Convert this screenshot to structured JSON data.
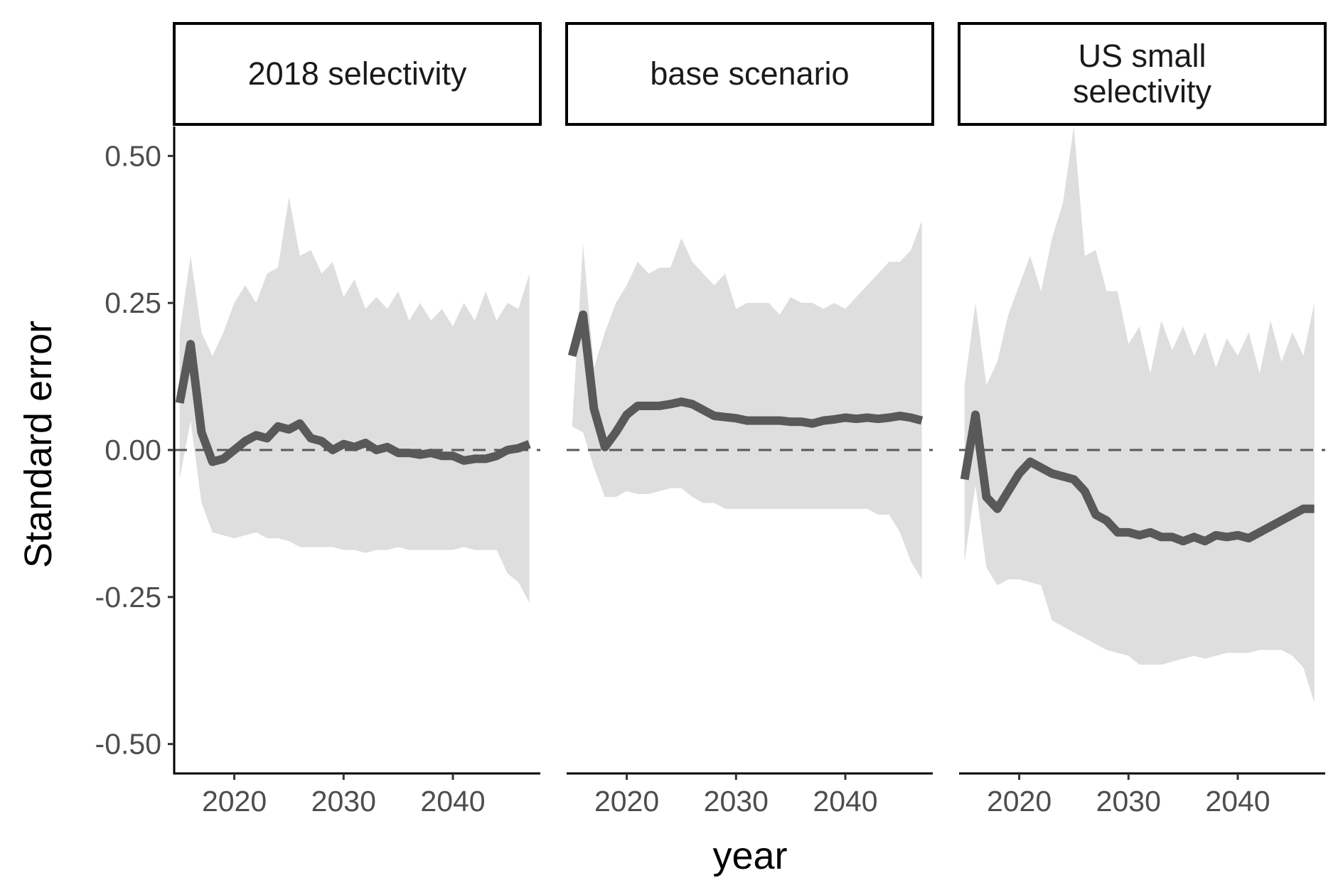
{
  "chart_data": {
    "type": "area",
    "title": "",
    "xlabel": "year",
    "ylabel": "Standard error",
    "ylim": [
      -0.55,
      0.55
    ],
    "xlim": [
      2014.5,
      2048
    ],
    "yticks": [
      0.5,
      0.25,
      0.0,
      -0.25,
      -0.5
    ],
    "ytick_labels": [
      "0.50",
      "0.25",
      "0.00",
      "-0.25",
      "-0.50"
    ],
    "xticks": [
      2020,
      2030,
      2040
    ],
    "xtick_labels": [
      "2020",
      "2030",
      "2040"
    ],
    "reference_line": 0,
    "grid": false,
    "legend": "none",
    "colors": {
      "ribbon": "#dedede",
      "line": "#595959",
      "reference": "#595959",
      "strip_border": "#000000"
    },
    "x": [
      2015,
      2016,
      2017,
      2018,
      2019,
      2020,
      2021,
      2022,
      2023,
      2024,
      2025,
      2026,
      2027,
      2028,
      2029,
      2030,
      2031,
      2032,
      2033,
      2034,
      2035,
      2036,
      2037,
      2038,
      2039,
      2040,
      2041,
      2042,
      2043,
      2044,
      2045,
      2046,
      2047
    ],
    "panels": [
      {
        "label": "2018 selectivity",
        "median": [
          0.08,
          0.18,
          0.03,
          -0.02,
          -0.015,
          0.0,
          0.015,
          0.025,
          0.02,
          0.04,
          0.035,
          0.045,
          0.02,
          0.015,
          0.0,
          0.01,
          0.005,
          0.012,
          0.0,
          0.005,
          -0.005,
          -0.005,
          -0.008,
          -0.005,
          -0.01,
          -0.01,
          -0.018,
          -0.015,
          -0.015,
          -0.01,
          0.0,
          0.003,
          0.01
        ],
        "upper": [
          0.2,
          0.33,
          0.2,
          0.16,
          0.2,
          0.25,
          0.28,
          0.25,
          0.3,
          0.31,
          0.43,
          0.33,
          0.34,
          0.3,
          0.32,
          0.26,
          0.29,
          0.24,
          0.26,
          0.24,
          0.27,
          0.22,
          0.25,
          0.22,
          0.24,
          0.21,
          0.25,
          0.22,
          0.27,
          0.22,
          0.25,
          0.24,
          0.3
        ],
        "lower": [
          -0.05,
          0.05,
          -0.09,
          -0.14,
          -0.145,
          -0.15,
          -0.145,
          -0.14,
          -0.15,
          -0.15,
          -0.155,
          -0.165,
          -0.165,
          -0.165,
          -0.165,
          -0.17,
          -0.17,
          -0.175,
          -0.17,
          -0.17,
          -0.165,
          -0.17,
          -0.17,
          -0.17,
          -0.17,
          -0.17,
          -0.165,
          -0.17,
          -0.17,
          -0.17,
          -0.21,
          -0.225,
          -0.26
        ]
      },
      {
        "label": "base scenario",
        "median": [
          0.16,
          0.23,
          0.07,
          0.005,
          0.03,
          0.06,
          0.075,
          0.075,
          0.075,
          0.078,
          0.082,
          0.078,
          0.068,
          0.058,
          0.056,
          0.054,
          0.05,
          0.05,
          0.05,
          0.05,
          0.048,
          0.048,
          0.045,
          0.05,
          0.052,
          0.055,
          0.053,
          0.055,
          0.053,
          0.055,
          0.058,
          0.055,
          0.05
        ],
        "upper": [
          0.04,
          0.35,
          0.14,
          0.2,
          0.25,
          0.28,
          0.32,
          0.3,
          0.31,
          0.31,
          0.36,
          0.32,
          0.3,
          0.28,
          0.3,
          0.24,
          0.25,
          0.25,
          0.25,
          0.23,
          0.26,
          0.25,
          0.25,
          0.24,
          0.25,
          0.24,
          0.26,
          0.28,
          0.3,
          0.32,
          0.32,
          0.34,
          0.39
        ],
        "lower": [
          0.04,
          0.03,
          -0.03,
          -0.08,
          -0.08,
          -0.07,
          -0.075,
          -0.075,
          -0.07,
          -0.065,
          -0.065,
          -0.08,
          -0.09,
          -0.09,
          -0.1,
          -0.1,
          -0.1,
          -0.1,
          -0.1,
          -0.1,
          -0.1,
          -0.1,
          -0.1,
          -0.1,
          -0.1,
          -0.1,
          -0.1,
          -0.1,
          -0.11,
          -0.11,
          -0.14,
          -0.19,
          -0.22
        ]
      },
      {
        "label": "US small\nselectivity",
        "median": [
          -0.05,
          0.06,
          -0.08,
          -0.1,
          -0.07,
          -0.04,
          -0.02,
          -0.03,
          -0.04,
          -0.045,
          -0.05,
          -0.07,
          -0.11,
          -0.12,
          -0.14,
          -0.14,
          -0.145,
          -0.14,
          -0.148,
          -0.148,
          -0.155,
          -0.148,
          -0.155,
          -0.145,
          -0.148,
          -0.145,
          -0.15,
          -0.14,
          -0.13,
          -0.12,
          -0.11,
          -0.1,
          -0.1
        ],
        "upper": [
          0.11,
          0.25,
          0.11,
          0.15,
          0.23,
          0.28,
          0.33,
          0.27,
          0.36,
          0.42,
          0.55,
          0.33,
          0.34,
          0.27,
          0.27,
          0.18,
          0.21,
          0.13,
          0.22,
          0.17,
          0.21,
          0.16,
          0.2,
          0.14,
          0.19,
          0.16,
          0.2,
          0.13,
          0.22,
          0.15,
          0.2,
          0.16,
          0.25
        ],
        "lower": [
          -0.19,
          -0.06,
          -0.2,
          -0.23,
          -0.22,
          -0.22,
          -0.225,
          -0.23,
          -0.29,
          -0.3,
          -0.31,
          -0.32,
          -0.33,
          -0.34,
          -0.345,
          -0.35,
          -0.365,
          -0.365,
          -0.365,
          -0.36,
          -0.355,
          -0.35,
          -0.355,
          -0.35,
          -0.345,
          -0.345,
          -0.345,
          -0.34,
          -0.34,
          -0.34,
          -0.35,
          -0.37,
          -0.43
        ]
      }
    ]
  }
}
